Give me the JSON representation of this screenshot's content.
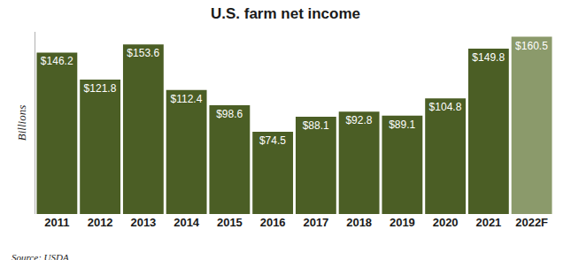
{
  "chart_data": {
    "type": "bar",
    "title": "U.S. farm net income",
    "y_label": "Billions",
    "annotations": [
      "Source: USDA"
    ],
    "categories": [
      "2011",
      "2012",
      "2013",
      "2014",
      "2015",
      "2016",
      "2017",
      "2018",
      "2019",
      "2020",
      "2021",
      "2022F"
    ],
    "values": [
      146.2,
      121.8,
      153.6,
      112.4,
      98.6,
      74.5,
      88.1,
      92.8,
      89.1,
      104.8,
      149.8,
      160.5
    ],
    "value_labels": [
      "$146.2",
      "$121.8",
      "$153.6",
      "$112.4",
      "$98.6",
      "$74.5",
      "$88.1",
      "$92.8",
      "$89.1",
      "$104.8",
      "$149.8",
      "$160.5"
    ],
    "colors": [
      "#4b5e25",
      "#4b5e25",
      "#4b5e25",
      "#4b5e25",
      "#4b5e25",
      "#4b5e25",
      "#4b5e25",
      "#4b5e25",
      "#4b5e25",
      "#4b5e25",
      "#4b5e25",
      "#8b9a6b"
    ],
    "ylim": [
      0,
      165
    ],
    "data_labels": true,
    "tick_labels": "x",
    "grid": false
  }
}
